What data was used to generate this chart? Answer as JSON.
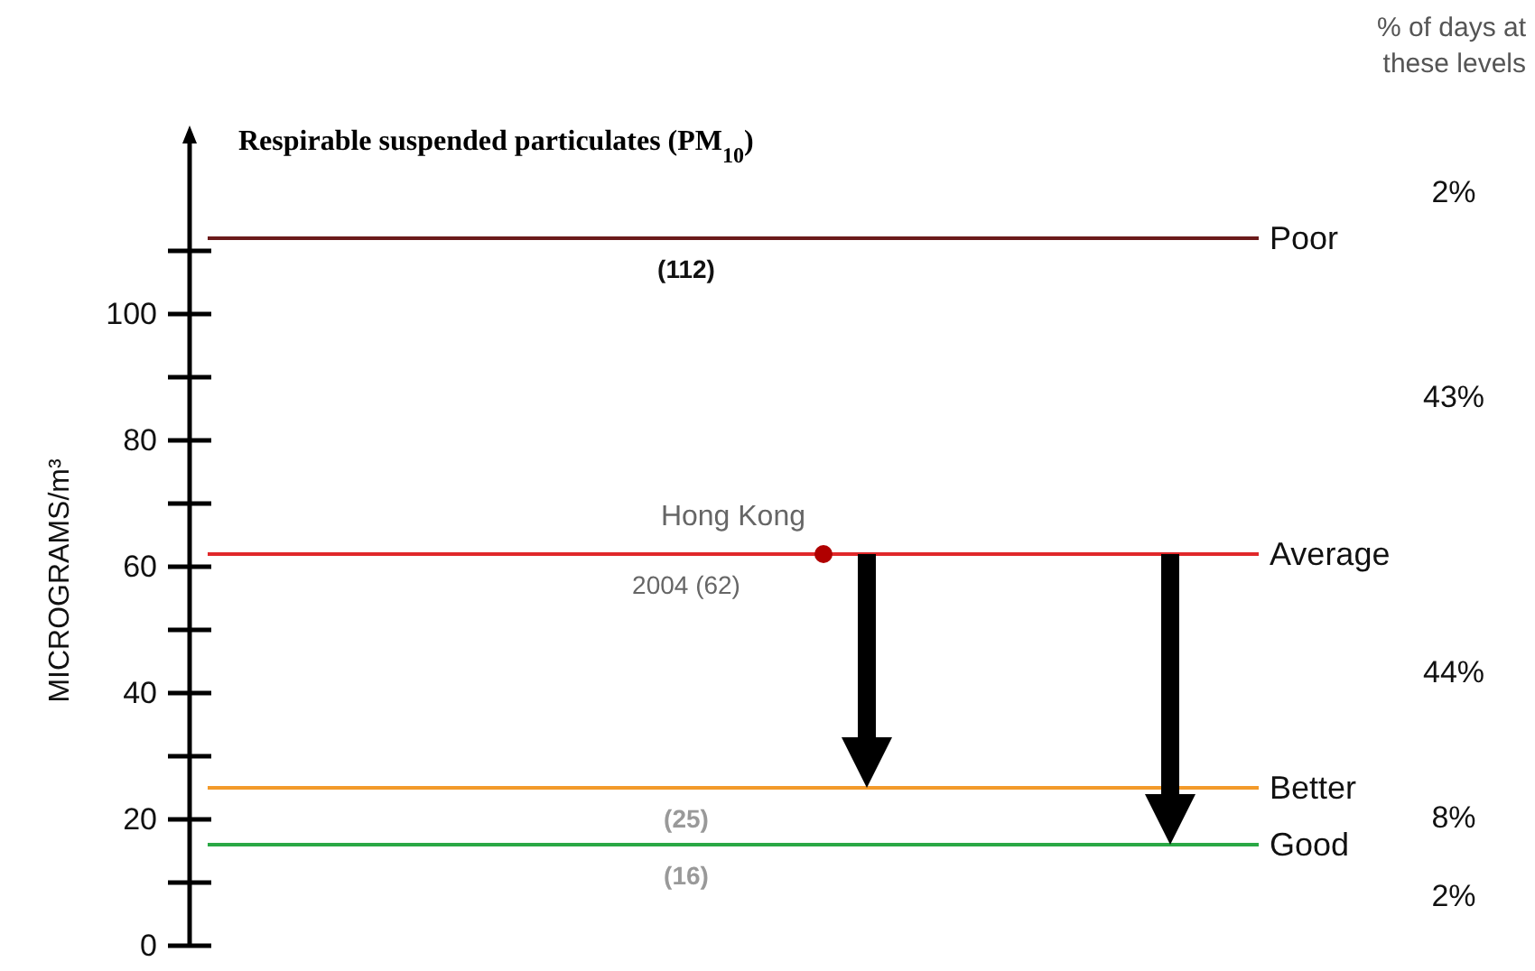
{
  "chart_data": {
    "type": "scatter",
    "title": "Respirable suspended particulates (PM$_{10}$)",
    "ylabel": "MICROGRAMS/m³",
    "categories": [
      null
    ],
    "series": [
      {
        "name": "Hong Kong",
        "color": "#b00000",
        "values": [
          62
        ]
      }
    ],
    "marker": "circle",
    "tick_labels": "y",
    "legend": false,
    "grid": false,
    "ylim": [
      0,
      127
    ],
    "yticks": [
      0,
      {
        "value": 10,
        "label": null
      },
      20,
      {
        "value": 30,
        "label": null
      },
      40,
      {
        "value": 50,
        "label": null
      },
      60,
      {
        "value": 70,
        "label": null
      },
      80,
      {
        "value": 90,
        "label": null
      },
      100,
      {
        "value": 110,
        "label": null
      }
    ],
    "ref_lines": [
      {
        "axis": "y",
        "value": 112,
        "label": "Poor",
        "color": "#6b1a1a"
      },
      {
        "axis": "y",
        "value": 62,
        "label": "Average",
        "color": "#e0282a"
      },
      {
        "axis": "y",
        "value": 25,
        "label": "Better",
        "color": "#f39a2a"
      },
      {
        "axis": "y",
        "value": 16,
        "label": "Good",
        "color": "#2aa845"
      }
    ],
    "annotations": [
      "% of days at these levels",
      "(112)",
      "2004 (62)",
      "(25)",
      "(16)",
      "2%",
      "43%",
      "44%",
      "8%",
      "2%"
    ]
  }
}
